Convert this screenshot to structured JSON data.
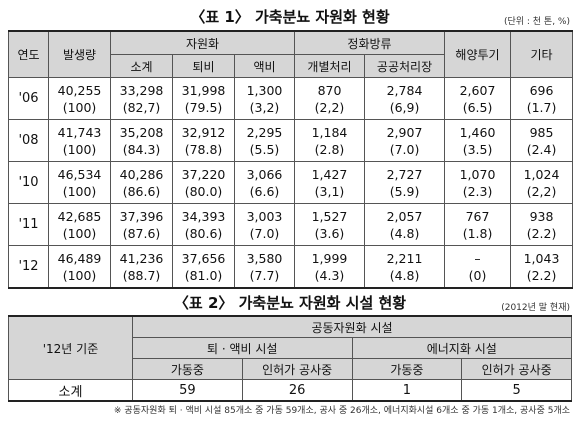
{
  "table1": {
    "title": "〈표 1〉 가축분뇨 자원화 현황",
    "unit": "(단위 : 천 톤, %)",
    "header": {
      "year": "연도",
      "total": "발생량",
      "recycle": "자원화",
      "recycle_sub": [
        "소계",
        "퇴비",
        "액비"
      ],
      "purify": "정화방류",
      "purify_sub": [
        "개별처리",
        "공공처리장"
      ],
      "ocean": "해양투기",
      "other": "기타"
    },
    "rows": [
      {
        "year": "'06",
        "cells": [
          [
            "40,255",
            "(100)"
          ],
          [
            "33,298",
            "(82,7)"
          ],
          [
            "31,998",
            "(79.5)"
          ],
          [
            "1,300",
            "(3,2)"
          ],
          [
            "870",
            "(2,2)"
          ],
          [
            "2,784",
            "(6,9)"
          ],
          [
            "2,607",
            "(6.5)"
          ],
          [
            "696",
            "(1.7)"
          ]
        ]
      },
      {
        "year": "'08",
        "cells": [
          [
            "41,743",
            "(100)"
          ],
          [
            "35,208",
            "(84.3)"
          ],
          [
            "32,912",
            "(78.8)"
          ],
          [
            "2,295",
            "(5.5)"
          ],
          [
            "1,184",
            "(2.8)"
          ],
          [
            "2,907",
            "(7.0)"
          ],
          [
            "1,460",
            "(3.5)"
          ],
          [
            "985",
            "(2.4)"
          ]
        ]
      },
      {
        "year": "'10",
        "cells": [
          [
            "46,534",
            "(100)"
          ],
          [
            "40,286",
            "(86.6)"
          ],
          [
            "37,220",
            "(80.0)"
          ],
          [
            "3,066",
            "(6.6)"
          ],
          [
            "1,427",
            "(3,1)"
          ],
          [
            "2,727",
            "(5.9)"
          ],
          [
            "1,070",
            "(2.3)"
          ],
          [
            "1,024",
            "(2,2)"
          ]
        ]
      },
      {
        "year": "'11",
        "cells": [
          [
            "42,685",
            "(100)"
          ],
          [
            "37,396",
            "(87.6)"
          ],
          [
            "34,393",
            "(80.6)"
          ],
          [
            "3,003",
            "(7.0)"
          ],
          [
            "1,527",
            "(3.6)"
          ],
          [
            "2,057",
            "(4.8)"
          ],
          [
            "767",
            "(1.8)"
          ],
          [
            "938",
            "(2.2)"
          ]
        ]
      },
      {
        "year": "'12",
        "cells": [
          [
            "46,489",
            "(100)"
          ],
          [
            "41,236",
            "(88.7)"
          ],
          [
            "37,656",
            "(81.0)"
          ],
          [
            "3,580",
            "(7.7)"
          ],
          [
            "1,999",
            "(4.3)"
          ],
          [
            "2,211",
            "(4.8)"
          ],
          [
            "–",
            "(0)"
          ],
          [
            "1,043",
            "(2.2)"
          ]
        ]
      }
    ]
  },
  "table2": {
    "title": "〈표 2〉 가축분뇨 자원화 시설 현황",
    "note": "(2012년 말 현재)",
    "header": {
      "basis": "'12년 기준",
      "group": "공동자원화 시설",
      "sub": [
        "퇴 · 액비 시설",
        "에너지화 시설"
      ],
      "status": [
        "가동중",
        "인허가 공사중",
        "가동중",
        "인허가 공사중"
      ]
    },
    "row": {
      "label": "소계",
      "values": [
        "59",
        "26",
        "1",
        "5"
      ]
    },
    "footnote": "※ 공동자원화 퇴 · 액비 시설 85개소 중 가동 59개소, 공사 중 26개소, 에너지화시설 6개소 중 가동 1개소, 공사중 5개소"
  }
}
